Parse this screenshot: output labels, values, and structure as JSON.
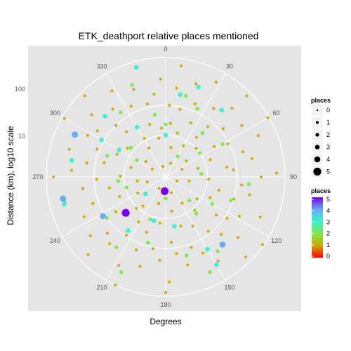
{
  "chart_data": {
    "type": "scatter",
    "coord": "polar",
    "title": "ETK_deathport relative places mentioned",
    "xlabel": "Degrees",
    "ylabel": "Distance (km), log10 scale",
    "theta_ticks": [
      "0",
      "30",
      "60",
      "90",
      "120",
      "150",
      "180",
      "210",
      "240",
      "270",
      "300",
      "330"
    ],
    "radius_ticks": [
      "10",
      "100"
    ],
    "grid": true,
    "legend_position": "right",
    "legend_size": {
      "title": "places",
      "labels": [
        "0",
        "1",
        "2",
        "3",
        "4",
        "5"
      ]
    },
    "legend_color": {
      "title": "places",
      "labels": [
        "5",
        "4",
        "3",
        "2",
        "1",
        "0"
      ]
    },
    "colors": {
      "panel": "#e5e5e5",
      "grid": "#ffffff",
      "p0": "#ff0000",
      "p1": "#c8ac00",
      "p2": "#7ee84a",
      "p3": "#40efd3",
      "p4": "#6aa9f5",
      "p5": "#7a00e8"
    },
    "series": [
      {
        "places": 1,
        "points": [
          [
            3,
            60
          ],
          [
            7,
            75
          ],
          [
            12,
            58
          ],
          [
            18,
            82
          ],
          [
            22,
            66
          ],
          [
            28,
            90
          ],
          [
            35,
            70
          ],
          [
            40,
            55
          ],
          [
            44,
            80
          ],
          [
            50,
            63
          ],
          [
            56,
            77
          ],
          [
            62,
            59
          ],
          [
            66,
            85
          ],
          [
            72,
            68
          ],
          [
            78,
            74
          ],
          [
            84,
            57
          ],
          [
            90,
            80
          ],
          [
            96,
            64
          ],
          [
            102,
            72
          ],
          [
            108,
            60
          ],
          [
            113,
            86
          ],
          [
            118,
            70
          ],
          [
            124,
            62
          ],
          [
            130,
            79
          ],
          [
            136,
            67
          ],
          [
            142,
            58
          ],
          [
            148,
            83
          ],
          [
            154,
            71
          ],
          [
            160,
            63
          ],
          [
            166,
            76
          ],
          [
            172,
            65
          ],
          [
            178,
            88
          ],
          [
            184,
            70
          ],
          [
            190,
            61
          ],
          [
            196,
            78
          ],
          [
            202,
            66
          ],
          [
            208,
            84
          ],
          [
            214,
            59
          ],
          [
            220,
            73
          ],
          [
            226,
            68
          ],
          [
            232,
            80
          ],
          [
            238,
            62
          ],
          [
            244,
            76
          ],
          [
            250,
            65
          ],
          [
            256,
            87
          ],
          [
            262,
            70
          ],
          [
            268,
            58
          ],
          [
            274,
            79
          ],
          [
            280,
            67
          ],
          [
            286,
            84
          ],
          [
            292,
            62
          ],
          [
            298,
            74
          ],
          [
            304,
            69
          ],
          [
            310,
            81
          ],
          [
            316,
            60
          ],
          [
            322,
            72
          ],
          [
            328,
            85
          ],
          [
            334,
            66
          ],
          [
            340,
            78
          ],
          [
            346,
            63
          ],
          [
            352,
            70
          ],
          [
            357,
            82
          ],
          [
            5,
            45
          ],
          [
            15,
            38
          ],
          [
            25,
            50
          ],
          [
            38,
            42
          ],
          [
            47,
            35
          ],
          [
            58,
            48
          ],
          [
            69,
            40
          ],
          [
            81,
            52
          ],
          [
            93,
            36
          ],
          [
            104,
            46
          ],
          [
            115,
            41
          ],
          [
            127,
            53
          ],
          [
            139,
            37
          ],
          [
            151,
            47
          ],
          [
            163,
            43
          ],
          [
            175,
            55
          ],
          [
            187,
            39
          ],
          [
            199,
            49
          ],
          [
            211,
            44
          ],
          [
            223,
            36
          ],
          [
            235,
            51
          ],
          [
            247,
            42
          ],
          [
            259,
            48
          ],
          [
            271,
            38
          ],
          [
            283,
            53
          ],
          [
            295,
            45
          ],
          [
            307,
            40
          ],
          [
            319,
            50
          ],
          [
            331,
            37
          ],
          [
            343,
            46
          ],
          [
            355,
            41
          ],
          [
            10,
            25
          ],
          [
            30,
            30
          ],
          [
            52,
            22
          ],
          [
            75,
            28
          ],
          [
            100,
            20
          ],
          [
            125,
            32
          ],
          [
            148,
            26
          ],
          [
            170,
            29
          ],
          [
            195,
            23
          ],
          [
            218,
            31
          ],
          [
            240,
            27
          ],
          [
            262,
            24
          ],
          [
            285,
            30
          ],
          [
            308,
            21
          ],
          [
            330,
            28
          ],
          [
            350,
            33
          ],
          [
            20,
            12
          ],
          [
            65,
            15
          ],
          [
            110,
            10
          ],
          [
            160,
            14
          ],
          [
            210,
            11
          ],
          [
            255,
            16
          ],
          [
            300,
            13
          ],
          [
            345,
            9
          ],
          [
            8,
            94
          ],
          [
            45,
            96
          ],
          [
            88,
            93
          ],
          [
            135,
            95
          ],
          [
            180,
            97
          ],
          [
            225,
            92
          ],
          [
            270,
            94
          ],
          [
            315,
            96
          ],
          [
            125,
            99
          ],
          [
            205,
            100
          ],
          [
            300,
            98
          ],
          [
            60,
            99
          ]
        ]
      },
      {
        "places": 2,
        "points": [
          [
            0,
            44
          ],
          [
            14,
            70
          ],
          [
            25,
            63
          ],
          [
            40,
            48
          ],
          [
            55,
            35
          ],
          [
            85,
            30
          ],
          [
            110,
            58
          ],
          [
            135,
            28
          ],
          [
            145,
            76
          ],
          [
            155,
            88
          ],
          [
            165,
            68
          ],
          [
            195,
            57
          ],
          [
            205,
            88
          ],
          [
            215,
            72
          ],
          [
            235,
            60
          ],
          [
            255,
            34
          ],
          [
            265,
            40
          ],
          [
            290,
            52
          ],
          [
            310,
            38
          ],
          [
            325,
            66
          ],
          [
            340,
            82
          ],
          [
            350,
            53
          ],
          [
            30,
            20
          ],
          [
            180,
            18
          ],
          [
            300,
            28
          ],
          [
            120,
            45
          ],
          [
            200,
            38
          ],
          [
            60,
            55
          ],
          [
            95,
            70
          ],
          [
            140,
            40
          ]
        ]
      },
      {
        "places": 3,
        "points": [
          [
            345,
            95
          ],
          [
            20,
            80
          ],
          [
            0,
            35
          ],
          [
            330,
            48
          ],
          [
            300,
            62
          ],
          [
            280,
            80
          ],
          [
            255,
            88
          ],
          [
            215,
            55
          ],
          [
            195,
            38
          ],
          [
            185,
            12
          ],
          [
            230,
            22
          ],
          [
            170,
            42
          ],
          [
            150,
            70
          ],
          [
            150,
            85
          ],
          [
            40,
            73
          ],
          [
            10,
            70
          ],
          [
            300,
            45
          ],
          [
            315,
            72
          ]
        ]
      },
      {
        "places": 4,
        "points": [
          [
            295,
            84
          ],
          [
            258,
            88
          ],
          [
            238,
            62
          ],
          [
            140,
            74
          ]
        ]
      },
      {
        "places": 5,
        "points": [
          [
            184,
            12
          ],
          [
            228,
            45
          ]
        ]
      }
    ]
  }
}
